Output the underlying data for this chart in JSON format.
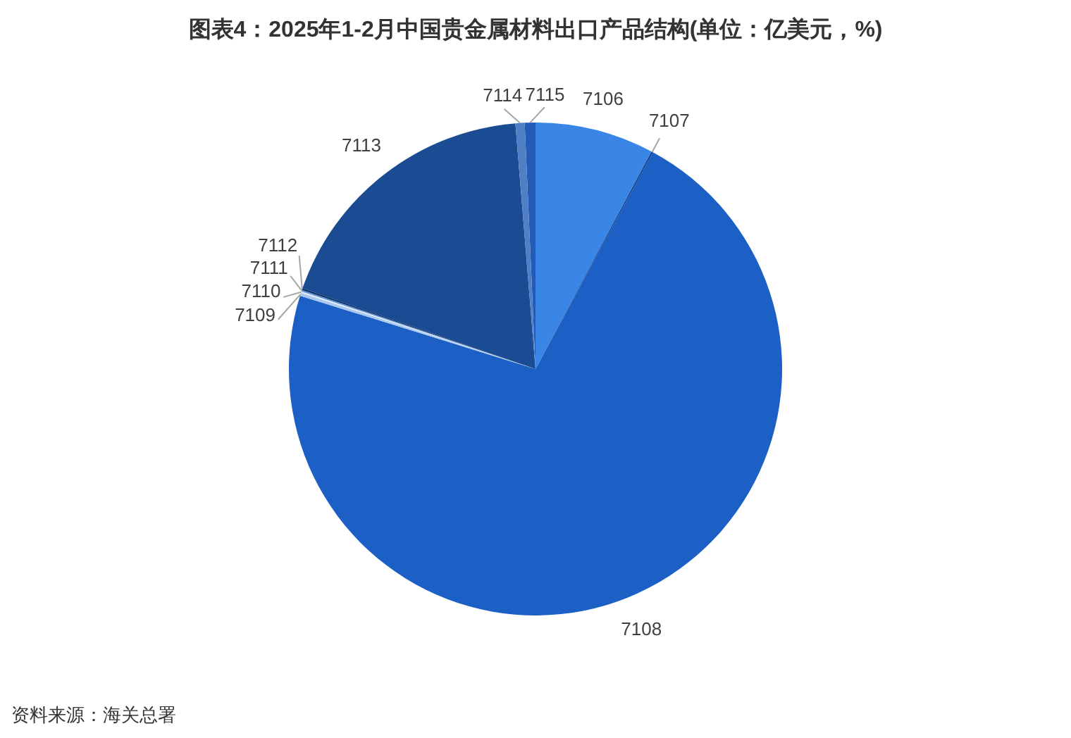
{
  "chart_data": {
    "type": "pie",
    "title": "图表4：2025年1-2月中国贵金属材料出口产品结构(单位：亿美元，%)",
    "categories": [
      "7106",
      "7107",
      "7108",
      "7109",
      "7110",
      "7111",
      "7112",
      "7113",
      "7114",
      "7115"
    ],
    "values": [
      7.8,
      0.1,
      71.9,
      0.2,
      0.1,
      0.1,
      0.1,
      18.4,
      0.6,
      0.7
    ],
    "colors": [
      "#3a86e6",
      "#0f3f8c",
      "#1c5fc5",
      "#a8c8f0",
      "#e0ebf8",
      "#5b8fd6",
      "#0a2f66",
      "#1b4b92",
      "#4f7fc4",
      "#245ab8"
    ],
    "annotations": [
      "资料来源：海关总署"
    ]
  }
}
